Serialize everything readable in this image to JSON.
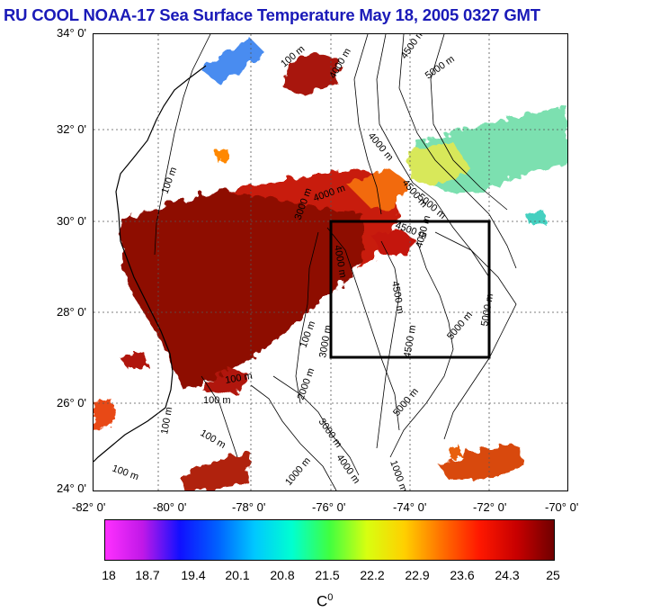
{
  "title": "RU COOL  NOAA-17 Sea Surface Temperature May 18, 2005 0327 GMT",
  "y_axis_labels": [
    "34° 0'",
    "32° 0'",
    "30° 0'",
    "28° 0'",
    "26° 0'",
    "24° 0'"
  ],
  "x_axis_labels": [
    "-82° 0'",
    "-80° 0'",
    "-78° 0'",
    "-76° 0'",
    "-74° 0'",
    "-72° 0'",
    "-70° 0'"
  ],
  "contour_labels": [
    "100 m",
    "4000 m",
    "4500 m",
    "5000 m",
    "3000 m",
    "4000 m",
    "4500 m",
    "5000 m",
    "4500 m",
    "4000 m",
    "100 m",
    "4000 m",
    "4500 m",
    "5000 m",
    "4500 m",
    "5000 m",
    "4000 m",
    "100 m",
    "100 m",
    "100 m",
    "100 m",
    "100 m",
    "5000 m",
    "3000 m",
    "1000 m",
    "2000 m",
    "4000 m",
    "3000 m",
    "100 m",
    "1000 m"
  ],
  "colorbar": {
    "labels": [
      "18",
      "18.7",
      "19.4",
      "20.1",
      "20.8",
      "21.5",
      "22.2",
      "22.9",
      "23.6",
      "24.3",
      "25"
    ],
    "unit": "C",
    "unit_sup": "0",
    "colors": [
      "#ff30ff",
      "#c018e8",
      "#1010ff",
      "#0060ff",
      "#00c8ff",
      "#00ffd0",
      "#40ff40",
      "#d8ff10",
      "#ffd000",
      "#ff7000",
      "#ff1800",
      "#c80000",
      "#700000"
    ]
  },
  "box": {
    "lon_min": -76,
    "lon_max": -72,
    "lat_min": 27,
    "lat_max": 30
  },
  "map": {
    "lon_min": -82,
    "lon_max": -70,
    "lat_min": 24,
    "lat_max": 34,
    "grid": "dotted"
  }
}
